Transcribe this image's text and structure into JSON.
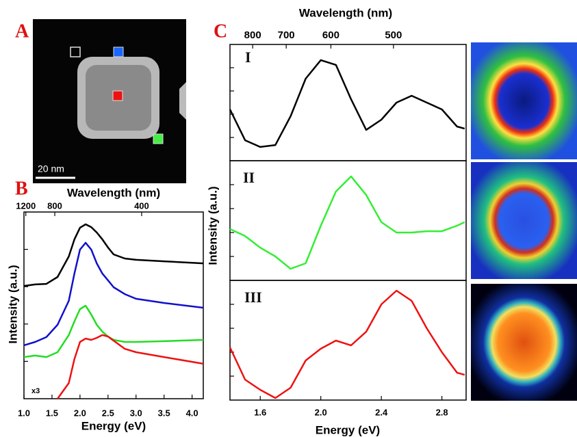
{
  "figure": {
    "panel": "A",
    "scale_bar": "20 nm"
  },
  "chart_data": [
    {
      "type": "line",
      "panel": "B",
      "x2label": "Wavelength (nm)",
      "xlabel": "Energy (eV)",
      "ylabel": "Intensity (a.u.)",
      "annotation": "x3",
      "xlim": [
        1.0,
        4.2
      ],
      "xticks": [
        {
          "value": 1,
          "label": "1.0"
        },
        1.5,
        {
          "value": 2,
          "label": "2.0"
        },
        2.5,
        {
          "value": 3,
          "label": "3.0"
        },
        3.5,
        {
          "value": 4,
          "label": "4.0"
        }
      ],
      "x2ticks": [
        1200,
        800,
        400
      ],
      "ylim": [
        0,
        10
      ],
      "yticks": [
        2,
        4,
        6,
        8
      ],
      "ytick_labels": false,
      "x": [
        1.0,
        1.2,
        1.4,
        1.6,
        1.8,
        1.9,
        2.0,
        2.1,
        2.2,
        2.3,
        2.4,
        2.5,
        2.6,
        2.8,
        3.0,
        3.5,
        4.2
      ],
      "series": [
        {
          "color": "#000000",
          "values": [
            6.04,
            6.12,
            6.15,
            6.52,
            7.62,
            8.53,
            9.16,
            9.34,
            9.19,
            8.9,
            8.53,
            8.1,
            7.73,
            7.51,
            7.44,
            7.36,
            7.25
          ]
        },
        {
          "color": "#1010cc",
          "values": [
            2.86,
            3.04,
            3.3,
            3.96,
            5.24,
            6.7,
            7.99,
            8.35,
            7.99,
            7.25,
            6.7,
            6.34,
            5.97,
            5.6,
            5.35,
            5.13,
            4.87
          ]
        },
        {
          "color": "#22dd22",
          "values": [
            2.23,
            2.31,
            2.23,
            2.49,
            3.41,
            4.14,
            4.8,
            4.98,
            4.51,
            3.96,
            3.59,
            3.33,
            3.15,
            3.04,
            3.04,
            3.08,
            3.15
          ]
        },
        {
          "color": "#ee1111",
          "values": [
            null,
            null,
            null,
            0,
            0.84,
            2.12,
            3.04,
            3.22,
            3.15,
            3.26,
            3.41,
            3.33,
            3.11,
            2.67,
            2.49,
            2.23,
            1.87
          ]
        }
      ]
    },
    {
      "type": "line",
      "panel": "C",
      "label": "I",
      "x2label": "Wavelength (nm)",
      "xlim": [
        1.4,
        2.96
      ],
      "x2ticks": [
        800,
        700,
        600,
        500
      ],
      "ylim": [
        0,
        10
      ],
      "yticks": [
        2,
        4,
        6,
        8
      ],
      "ytick_labels": false,
      "x": [
        1.4,
        1.5,
        1.6,
        1.7,
        1.8,
        1.9,
        2.0,
        2.1,
        2.2,
        2.3,
        2.4,
        2.5,
        2.6,
        2.7,
        2.8,
        2.9,
        2.95
      ],
      "series": [
        {
          "color": "#000000",
          "values": [
            4.41,
            1.76,
            1.18,
            1.35,
            3.82,
            7.06,
            8.65,
            8.24,
            5.29,
            2.65,
            3.53,
            5.0,
            5.59,
            5.0,
            4.41,
            2.94,
            2.76
          ]
        }
      ]
    },
    {
      "type": "line",
      "label": "II",
      "ylabel": "Intensity (a.u.)",
      "xlim": [
        1.4,
        2.96
      ],
      "ylim": [
        0,
        10
      ],
      "yticks": [
        2,
        4,
        6,
        8
      ],
      "ytick_labels": false,
      "x": [
        1.4,
        1.5,
        1.6,
        1.7,
        1.8,
        1.9,
        2.0,
        2.1,
        2.2,
        2.3,
        2.4,
        2.5,
        2.6,
        2.7,
        2.8,
        2.9,
        2.95
      ],
      "series": [
        {
          "color": "#33ee33",
          "values": [
            4.29,
            3.71,
            2.74,
            2.0,
            0.97,
            1.43,
            4.57,
            7.43,
            8.69,
            7.14,
            4.86,
            4.0,
            4.0,
            4.11,
            4.11,
            4.57,
            4.86
          ]
        }
      ]
    },
    {
      "type": "line",
      "label": "III",
      "xlabel": "Energy (eV)",
      "xlim": [
        1.4,
        2.96
      ],
      "xticks": [
        1.6,
        {
          "value": 2,
          "label": "2.0"
        },
        2.4,
        2.8
      ],
      "ylim": [
        0,
        10
      ],
      "yticks": [
        2,
        4,
        6,
        8
      ],
      "ytick_labels": false,
      "x": [
        1.4,
        1.5,
        1.6,
        1.7,
        1.8,
        1.9,
        2.0,
        2.1,
        2.2,
        2.3,
        2.4,
        2.5,
        2.6,
        2.7,
        2.8,
        2.9,
        2.95
      ],
      "series": [
        {
          "color": "#ee1111",
          "values": [
            4.4,
            1.71,
            0.86,
            0.17,
            1.03,
            3.31,
            4.29,
            4.97,
            4.57,
            5.71,
            8.0,
            9.14,
            8.29,
            6.0,
            4.0,
            2.29,
            2.11
          ]
        }
      ]
    }
  ]
}
